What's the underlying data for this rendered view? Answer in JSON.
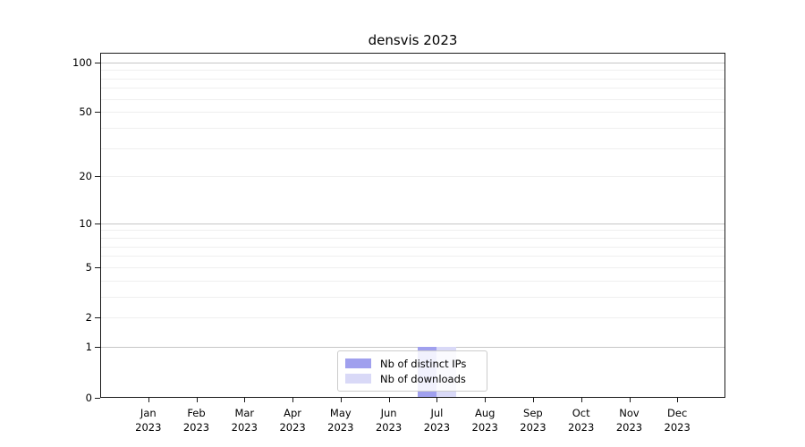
{
  "chart_data": {
    "type": "bar",
    "title": "densvis 2023",
    "x_axis": {
      "months": [
        "Jan",
        "Feb",
        "Mar",
        "Apr",
        "May",
        "Jun",
        "Jul",
        "Aug",
        "Sep",
        "Oct",
        "Nov",
        "Dec"
      ],
      "year": "2023",
      "categories": [
        "Jan 2023",
        "Feb 2023",
        "Mar 2023",
        "Apr 2023",
        "May 2023",
        "Jun 2023",
        "Jul 2023",
        "Aug 2023",
        "Sep 2023",
        "Oct 2023",
        "Nov 2023",
        "Dec 2023"
      ]
    },
    "y_axis": {
      "scale": "log1p",
      "tick_values": [
        0,
        1,
        2,
        5,
        10,
        20,
        50,
        100
      ],
      "major_grid_values": [
        1,
        10,
        100
      ],
      "minor_grid_values": [
        2,
        3,
        4,
        5,
        6,
        7,
        8,
        9,
        20,
        30,
        40,
        50,
        60,
        70,
        80,
        90
      ],
      "lim": [
        0,
        114
      ]
    },
    "series": [
      {
        "name": "Nb of distinct IPs",
        "color": "#a0a0ee",
        "values": [
          0,
          0,
          0,
          0,
          0,
          0,
          1,
          0,
          0,
          0,
          0,
          0
        ]
      },
      {
        "name": "Nb of downloads",
        "color": "#d9d9f7",
        "values": [
          0,
          0,
          0,
          0,
          0,
          0,
          1,
          0,
          0,
          0,
          0,
          0
        ]
      }
    ],
    "legend": {
      "position": "lower-center",
      "entries": [
        "Nb of distinct IPs",
        "Nb of downloads"
      ]
    },
    "grid": true,
    "colors": {
      "major_grid": "#c6c6c6",
      "minor_grid": "#efefef",
      "spine": "#1a1a1a",
      "background": "#ffffff",
      "legend_border": "#cccccc"
    }
  }
}
